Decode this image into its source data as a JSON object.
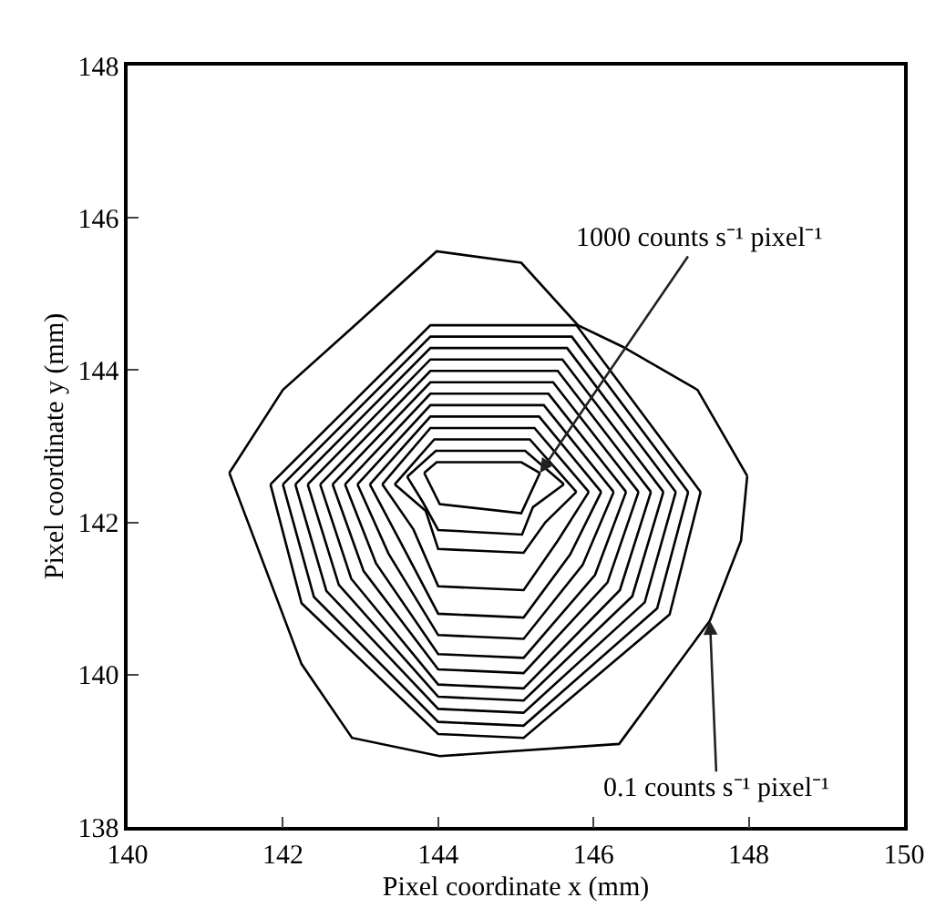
{
  "chart_data": {
    "type": "line",
    "xlabel": "Pixel coordinate x (mm)",
    "ylabel": "Pixel coordinate y (mm)",
    "xlim": [
      140,
      150
    ],
    "xticks": [
      140,
      142,
      144,
      146,
      148,
      150
    ],
    "ylim": [
      138,
      148
    ],
    "yticks": [
      138,
      140,
      142,
      144,
      146,
      148
    ],
    "grid": false,
    "marker": "none",
    "line_style": "solid",
    "annotations": [
      {
        "text": "1000 counts s⁻¹ pixel⁻¹",
        "x": 145.31,
        "y": 142.65
      },
      {
        "text": "0.1 counts s⁻¹ pixel⁻¹",
        "x": 147.5,
        "y": 140.71
      }
    ],
    "series": [
      {
        "color": "#000000",
        "x": [
          141.31,
          142.0,
          142.93,
          143.98,
          145.07,
          145.8,
          146.37,
          147.34,
          147.98
        ],
        "values": [
          142.65,
          143.74,
          144.59,
          145.56,
          145.41,
          144.59,
          144.31,
          143.74,
          142.61
        ]
      },
      {
        "color": "#000000",
        "x": [
          141.31,
          141.64,
          142.24,
          142.89,
          144.02,
          146.33,
          147.5,
          147.9,
          147.98
        ],
        "values": [
          142.65,
          141.76,
          140.14,
          139.17,
          138.93,
          139.09,
          140.71,
          141.76,
          142.61
        ]
      },
      {
        "color": "#000000",
        "x": [
          141.84,
          143.9,
          145.78,
          147.38
        ],
        "values": [
          142.5,
          144.59,
          144.59,
          142.4
        ]
      },
      {
        "color": "#000000",
        "x": [
          141.84,
          142.24,
          144.0,
          145.1,
          146.98,
          147.38
        ],
        "values": [
          142.5,
          140.94,
          139.22,
          139.17,
          140.79,
          142.4
        ]
      },
      {
        "color": "#000000",
        "x": [
          142.0,
          143.9,
          145.72,
          147.22
        ],
        "values": [
          142.5,
          144.44,
          144.44,
          142.4
        ]
      },
      {
        "color": "#000000",
        "x": [
          142.0,
          142.4,
          144.0,
          145.1,
          146.82,
          147.22
        ],
        "values": [
          142.5,
          141.02,
          139.38,
          139.33,
          140.87,
          142.4
        ]
      },
      {
        "color": "#000000",
        "x": [
          142.16,
          143.9,
          145.66,
          147.06
        ],
        "values": [
          142.5,
          144.29,
          144.29,
          142.4
        ]
      },
      {
        "color": "#000000",
        "x": [
          142.16,
          142.56,
          144.0,
          145.1,
          146.66,
          147.06
        ],
        "values": [
          142.5,
          141.1,
          139.55,
          139.5,
          140.95,
          142.4
        ]
      },
      {
        "color": "#000000",
        "x": [
          142.32,
          143.9,
          145.6,
          146.9
        ],
        "values": [
          142.5,
          144.14,
          144.14,
          142.4
        ]
      },
      {
        "color": "#000000",
        "x": [
          142.32,
          142.72,
          144.0,
          145.1,
          146.5,
          146.9
        ],
        "values": [
          142.5,
          141.18,
          139.71,
          139.66,
          141.03,
          142.4
        ]
      },
      {
        "color": "#000000",
        "x": [
          142.48,
          143.9,
          145.54,
          146.74
        ],
        "values": [
          142.5,
          143.99,
          143.99,
          142.4
        ]
      },
      {
        "color": "#000000",
        "x": [
          142.48,
          142.88,
          144.0,
          145.1,
          146.34,
          146.74
        ],
        "values": [
          142.5,
          141.26,
          139.87,
          139.82,
          141.11,
          142.4
        ]
      },
      {
        "color": "#000000",
        "x": [
          142.64,
          143.9,
          145.48,
          146.58
        ],
        "values": [
          142.5,
          143.84,
          143.84,
          142.4
        ]
      },
      {
        "color": "#000000",
        "x": [
          142.64,
          143.04,
          144.0,
          145.1,
          146.18,
          146.58
        ],
        "values": [
          142.5,
          141.36,
          140.07,
          140.02,
          141.21,
          142.4
        ]
      },
      {
        "color": "#000000",
        "x": [
          142.8,
          143.9,
          145.42,
          146.42
        ],
        "values": [
          142.5,
          143.69,
          143.69,
          142.4
        ]
      },
      {
        "color": "#000000",
        "x": [
          142.8,
          143.2,
          144.0,
          145.1,
          146.02,
          146.42
        ],
        "values": [
          142.5,
          141.46,
          140.27,
          140.22,
          141.31,
          142.4
        ]
      },
      {
        "color": "#000000",
        "x": [
          142.96,
          143.9,
          145.36,
          146.26
        ],
        "values": [
          142.5,
          143.54,
          143.54,
          142.4
        ]
      },
      {
        "color": "#000000",
        "x": [
          142.96,
          143.36,
          144.0,
          145.1,
          145.86,
          146.26
        ],
        "values": [
          142.5,
          141.59,
          140.52,
          140.47,
          141.44,
          142.4
        ]
      },
      {
        "color": "#000000",
        "x": [
          143.12,
          143.9,
          145.3,
          146.1
        ],
        "values": [
          142.5,
          143.39,
          143.39,
          142.4
        ]
      },
      {
        "color": "#000000",
        "x": [
          143.12,
          143.52,
          144.0,
          145.1,
          145.7,
          146.1
        ],
        "values": [
          142.5,
          141.73,
          140.8,
          140.75,
          141.58,
          142.4
        ]
      },
      {
        "color": "#000000",
        "x": [
          143.28,
          143.9,
          145.24,
          145.94
        ],
        "values": [
          142.5,
          143.24,
          143.24,
          142.4
        ]
      },
      {
        "color": "#000000",
        "x": [
          143.28,
          143.68,
          144.0,
          145.1,
          145.54,
          145.94
        ],
        "values": [
          142.5,
          141.91,
          141.16,
          141.11,
          141.76,
          142.4
        ]
      },
      {
        "color": "#000000",
        "x": [
          143.44,
          143.95,
          145.18,
          145.78
        ],
        "values": [
          142.5,
          143.09,
          143.09,
          142.4
        ]
      },
      {
        "color": "#000000",
        "x": [
          143.44,
          143.84,
          144.0,
          145.1,
          145.38,
          145.78
        ],
        "values": [
          142.5,
          142.15,
          141.65,
          141.6,
          142.0,
          142.4
        ]
      },
      {
        "color": "#000000",
        "x": [
          143.6,
          143.97,
          145.12,
          145.62
        ],
        "values": [
          142.6,
          142.94,
          142.94,
          142.5
        ]
      },
      {
        "color": "#000000",
        "x": [
          143.6,
          143.8,
          144.0,
          145.08,
          145.22,
          145.62
        ],
        "values": [
          142.6,
          142.27,
          141.9,
          141.84,
          142.2,
          142.5
        ]
      },
      {
        "color": "#000000",
        "x": [
          143.82,
          143.98,
          145.07,
          145.31
        ],
        "values": [
          142.65,
          142.79,
          142.79,
          142.65
        ]
      },
      {
        "color": "#000000",
        "x": [
          143.82,
          144.02,
          145.07,
          145.31
        ],
        "values": [
          142.65,
          142.24,
          142.12,
          142.65
        ]
      }
    ]
  }
}
